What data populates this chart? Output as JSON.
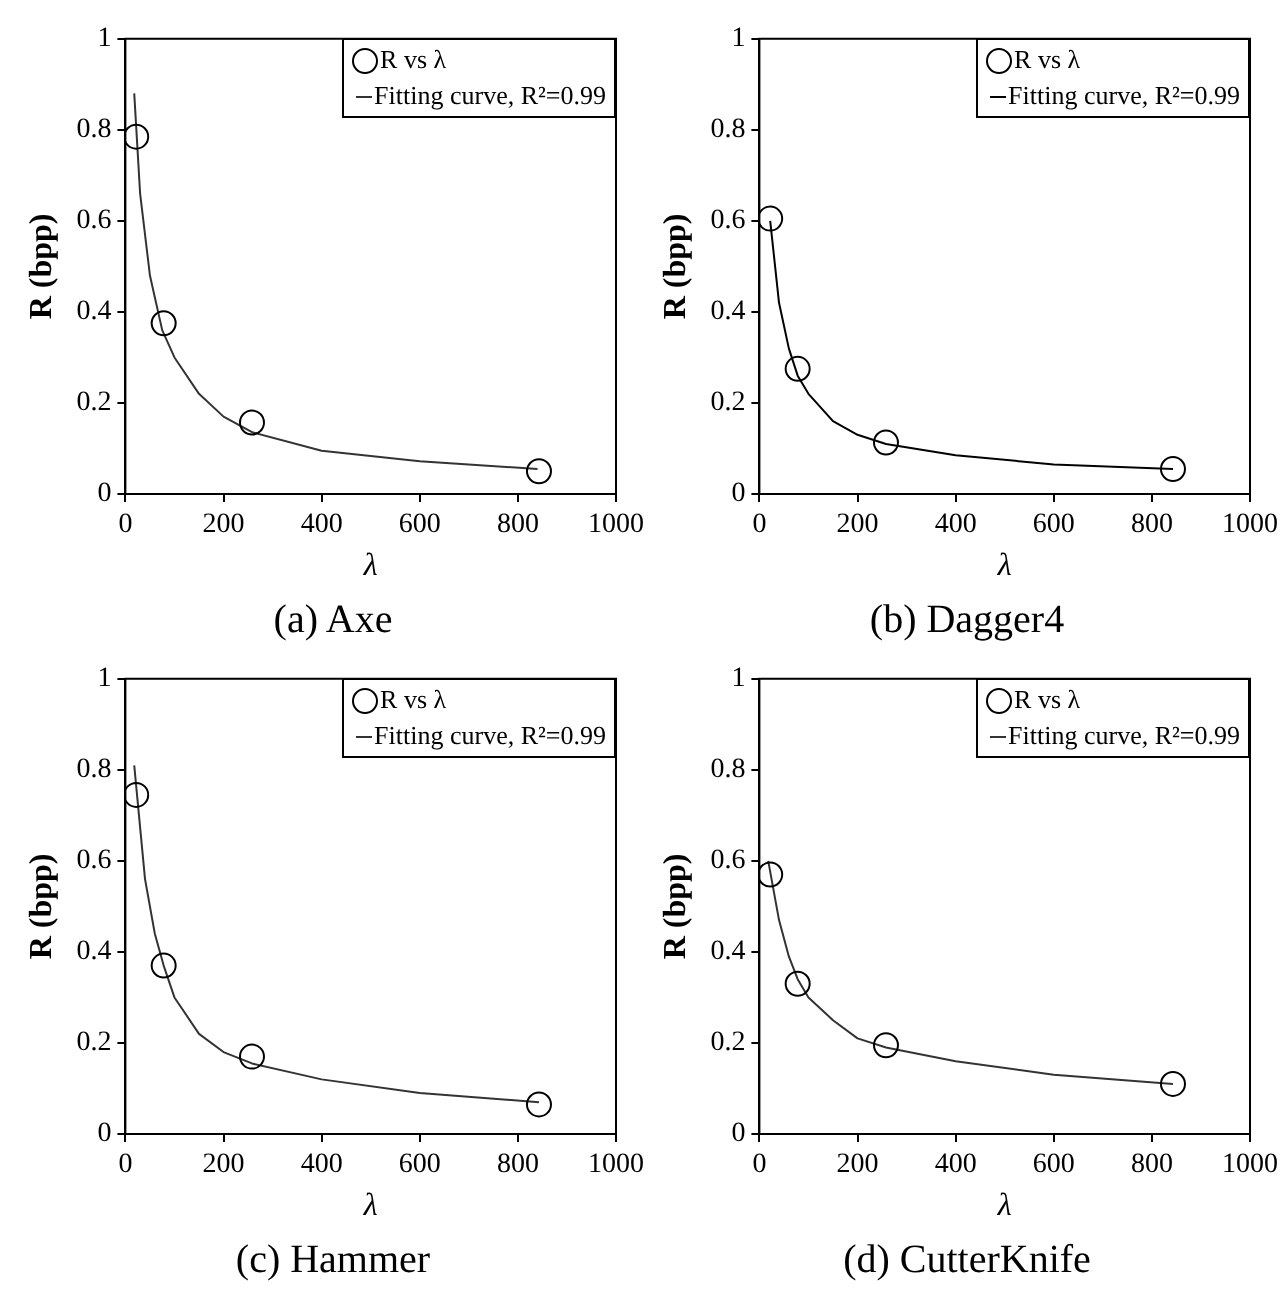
{
  "chart_data": [
    {
      "type": "scatter",
      "title": "(a) Axe",
      "xlabel": "λ",
      "ylabel": "R (bpp)",
      "xlim": [
        0,
        1000
      ],
      "xticks": [
        0,
        200,
        400,
        600,
        800,
        1000
      ],
      "ylim": [
        0,
        1
      ],
      "yticks": [
        0,
        0.2,
        0.4,
        0.6,
        0.8,
        1
      ],
      "grid": false,
      "legend": "top right",
      "series": [
        {
          "name": "R vs λ",
          "type": "scatter",
          "marker": "circle",
          "color": "#000000",
          "x": [
            22,
            78,
            258,
            843
          ],
          "values": [
            0.785,
            0.375,
            0.157,
            0.05
          ]
        },
        {
          "name": "Fitting curve, R²=0.99",
          "type": "line",
          "marker": "none",
          "line_style": "solid",
          "color": "#333333",
          "x": [
            18,
            30,
            50,
            75,
            100,
            150,
            200,
            260,
            400,
            600,
            840
          ],
          "values": [
            0.88,
            0.66,
            0.48,
            0.36,
            0.3,
            0.22,
            0.17,
            0.135,
            0.095,
            0.072,
            0.055
          ]
        }
      ]
    },
    {
      "type": "scatter",
      "title": "(b) Dagger4",
      "xlabel": "λ",
      "ylabel": "R (bpp)",
      "xlim": [
        0,
        1000
      ],
      "xticks": [
        0,
        200,
        400,
        600,
        800,
        1000
      ],
      "ylim": [
        0,
        1
      ],
      "yticks": [
        0,
        0.2,
        0.4,
        0.6,
        0.8,
        1
      ],
      "grid": false,
      "legend": "top right",
      "series": [
        {
          "name": "R vs λ",
          "type": "scatter",
          "marker": "circle",
          "color": "#000000",
          "x": [
            22,
            78,
            258,
            843
          ],
          "values": [
            0.605,
            0.275,
            0.113,
            0.055
          ]
        },
        {
          "name": "Fitting curve, R²=0.99",
          "type": "line",
          "marker": "none",
          "line_style": "solid",
          "color": "#000000",
          "x": [
            22,
            40,
            60,
            78,
            100,
            150,
            200,
            258,
            400,
            600,
            843
          ],
          "values": [
            0.6,
            0.42,
            0.32,
            0.26,
            0.22,
            0.16,
            0.13,
            0.11,
            0.085,
            0.065,
            0.055
          ]
        }
      ]
    },
    {
      "type": "scatter",
      "title": "(c) Hammer",
      "xlabel": "λ",
      "ylabel": "R (bpp)",
      "xlim": [
        0,
        1000
      ],
      "xticks": [
        0,
        200,
        400,
        600,
        800,
        1000
      ],
      "ylim": [
        0,
        1
      ],
      "yticks": [
        0,
        0.2,
        0.4,
        0.6,
        0.8,
        1
      ],
      "grid": false,
      "legend": "top right",
      "series": [
        {
          "name": "R vs λ",
          "type": "scatter",
          "marker": "circle",
          "color": "#000000",
          "x": [
            22,
            78,
            258,
            843
          ],
          "values": [
            0.745,
            0.37,
            0.17,
            0.065
          ]
        },
        {
          "name": "Fitting curve, R²=0.99",
          "type": "line",
          "marker": "none",
          "line_style": "solid",
          "color": "#333333",
          "x": [
            18,
            40,
            60,
            78,
            100,
            150,
            200,
            258,
            400,
            600,
            843
          ],
          "values": [
            0.81,
            0.56,
            0.44,
            0.37,
            0.3,
            0.22,
            0.18,
            0.155,
            0.12,
            0.09,
            0.07
          ]
        }
      ]
    },
    {
      "type": "scatter",
      "title": "(d) CutterKnife",
      "xlabel": "λ",
      "ylabel": "R (bpp)",
      "xlim": [
        0,
        1000
      ],
      "xticks": [
        0,
        200,
        400,
        600,
        800,
        1000
      ],
      "ylim": [
        0,
        1
      ],
      "yticks": [
        0,
        0.2,
        0.4,
        0.6,
        0.8,
        1
      ],
      "grid": false,
      "legend": "top right",
      "series": [
        {
          "name": "R vs λ",
          "type": "scatter",
          "marker": "circle",
          "color": "#000000",
          "x": [
            22,
            78,
            258,
            843
          ],
          "values": [
            0.57,
            0.33,
            0.195,
            0.11
          ]
        },
        {
          "name": "Fitting curve, R²=0.99",
          "type": "line",
          "marker": "none",
          "line_style": "solid",
          "color": "#333333",
          "x": [
            18,
            40,
            60,
            78,
            100,
            150,
            200,
            258,
            400,
            600,
            843
          ],
          "values": [
            0.6,
            0.47,
            0.39,
            0.34,
            0.3,
            0.25,
            0.21,
            0.19,
            0.16,
            0.13,
            0.11
          ]
        }
      ]
    }
  ]
}
